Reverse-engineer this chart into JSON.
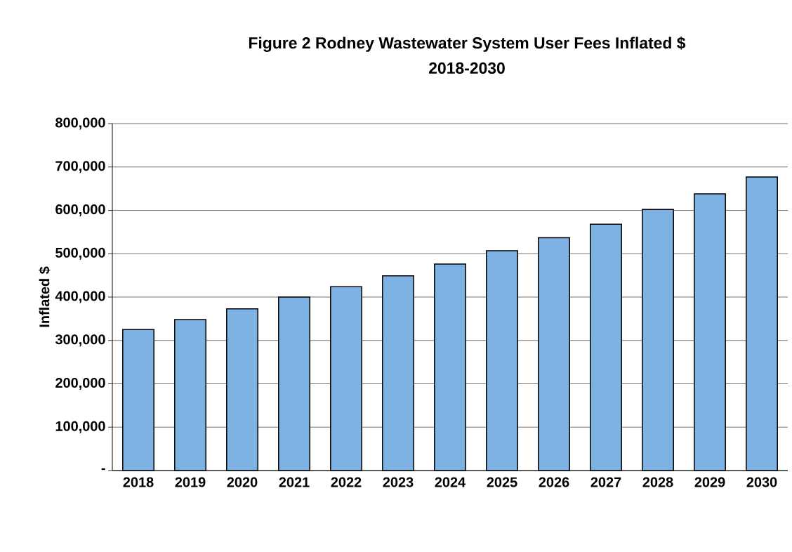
{
  "chart_data": {
    "type": "bar",
    "title": "Figure 2 Rodney Wastewater System User Fees  Inflated $",
    "subtitle": "2018-2030",
    "ylabel": "Inflated $",
    "categories": [
      "2018",
      "2019",
      "2020",
      "2021",
      "2022",
      "2023",
      "2024",
      "2025",
      "2026",
      "2027",
      "2028",
      "2029",
      "2030"
    ],
    "values": [
      325000,
      348000,
      373000,
      400000,
      424000,
      449000,
      476000,
      507000,
      537000,
      568000,
      602000,
      638000,
      677000
    ],
    "color": "#7eb2e4",
    "ylim": [
      0,
      800000
    ],
    "yticks": [
      {
        "value": 0,
        "label": "-"
      },
      {
        "value": 100000,
        "label": "100,000"
      },
      {
        "value": 200000,
        "label": "200,000"
      },
      {
        "value": 300000,
        "label": "300,000"
      },
      {
        "value": 400000,
        "label": "400,000"
      },
      {
        "value": 500000,
        "label": "500,000"
      },
      {
        "value": 600000,
        "label": "600,000"
      },
      {
        "value": 700000,
        "label": "700,000"
      },
      {
        "value": 800000,
        "label": "800,000"
      }
    ],
    "grid": "y"
  }
}
